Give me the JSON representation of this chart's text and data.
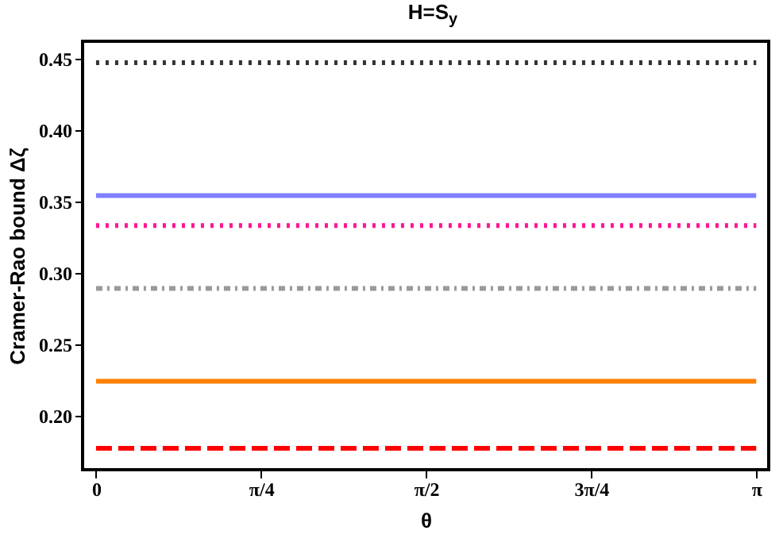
{
  "chart_data": {
    "type": "line",
    "title": "H=S$_{y}$",
    "xlabel": "θ",
    "ylabel": "Cramer-Rao bound Δζ",
    "x": [
      0,
      3.1416
    ],
    "xlim": [
      -0.064,
      3.201
    ],
    "xticks": [
      0,
      {
        "value": 0.7854,
        "label": "π/4"
      },
      {
        "value": 1.5708,
        "label": "π/2"
      },
      {
        "value": 2.3562,
        "label": "3π/4"
      },
      {
        "value": 3.1416,
        "label": "π"
      }
    ],
    "ylim": [
      0.162,
      0.462
    ],
    "yticks": [
      {
        "value": 0.2,
        "label": "0.20"
      },
      0.25,
      {
        "value": 0.3,
        "label": "0.30"
      },
      0.35,
      {
        "value": 0.4,
        "label": "0.40"
      },
      0.45
    ],
    "grid": false,
    "marker": "none",
    "series": [
      {
        "color": "#333333",
        "line_style": "dotted",
        "values": [
          0.447,
          0.447
        ]
      },
      {
        "color": "#8080ff",
        "line_style": "solid",
        "values": [
          0.354,
          0.354
        ]
      },
      {
        "color": "#ff1493",
        "line_style": "dotted",
        "values": [
          0.333,
          0.333
        ]
      },
      {
        "color": "#999999",
        "line_style": "dashdot",
        "values": [
          0.289,
          0.289
        ]
      },
      {
        "color": "#ff8000",
        "line_style": "solid",
        "values": [
          0.224,
          0.224
        ]
      },
      {
        "color": "#ff0000",
        "line_style": "dashed",
        "values": [
          0.177,
          0.177
        ]
      }
    ]
  }
}
